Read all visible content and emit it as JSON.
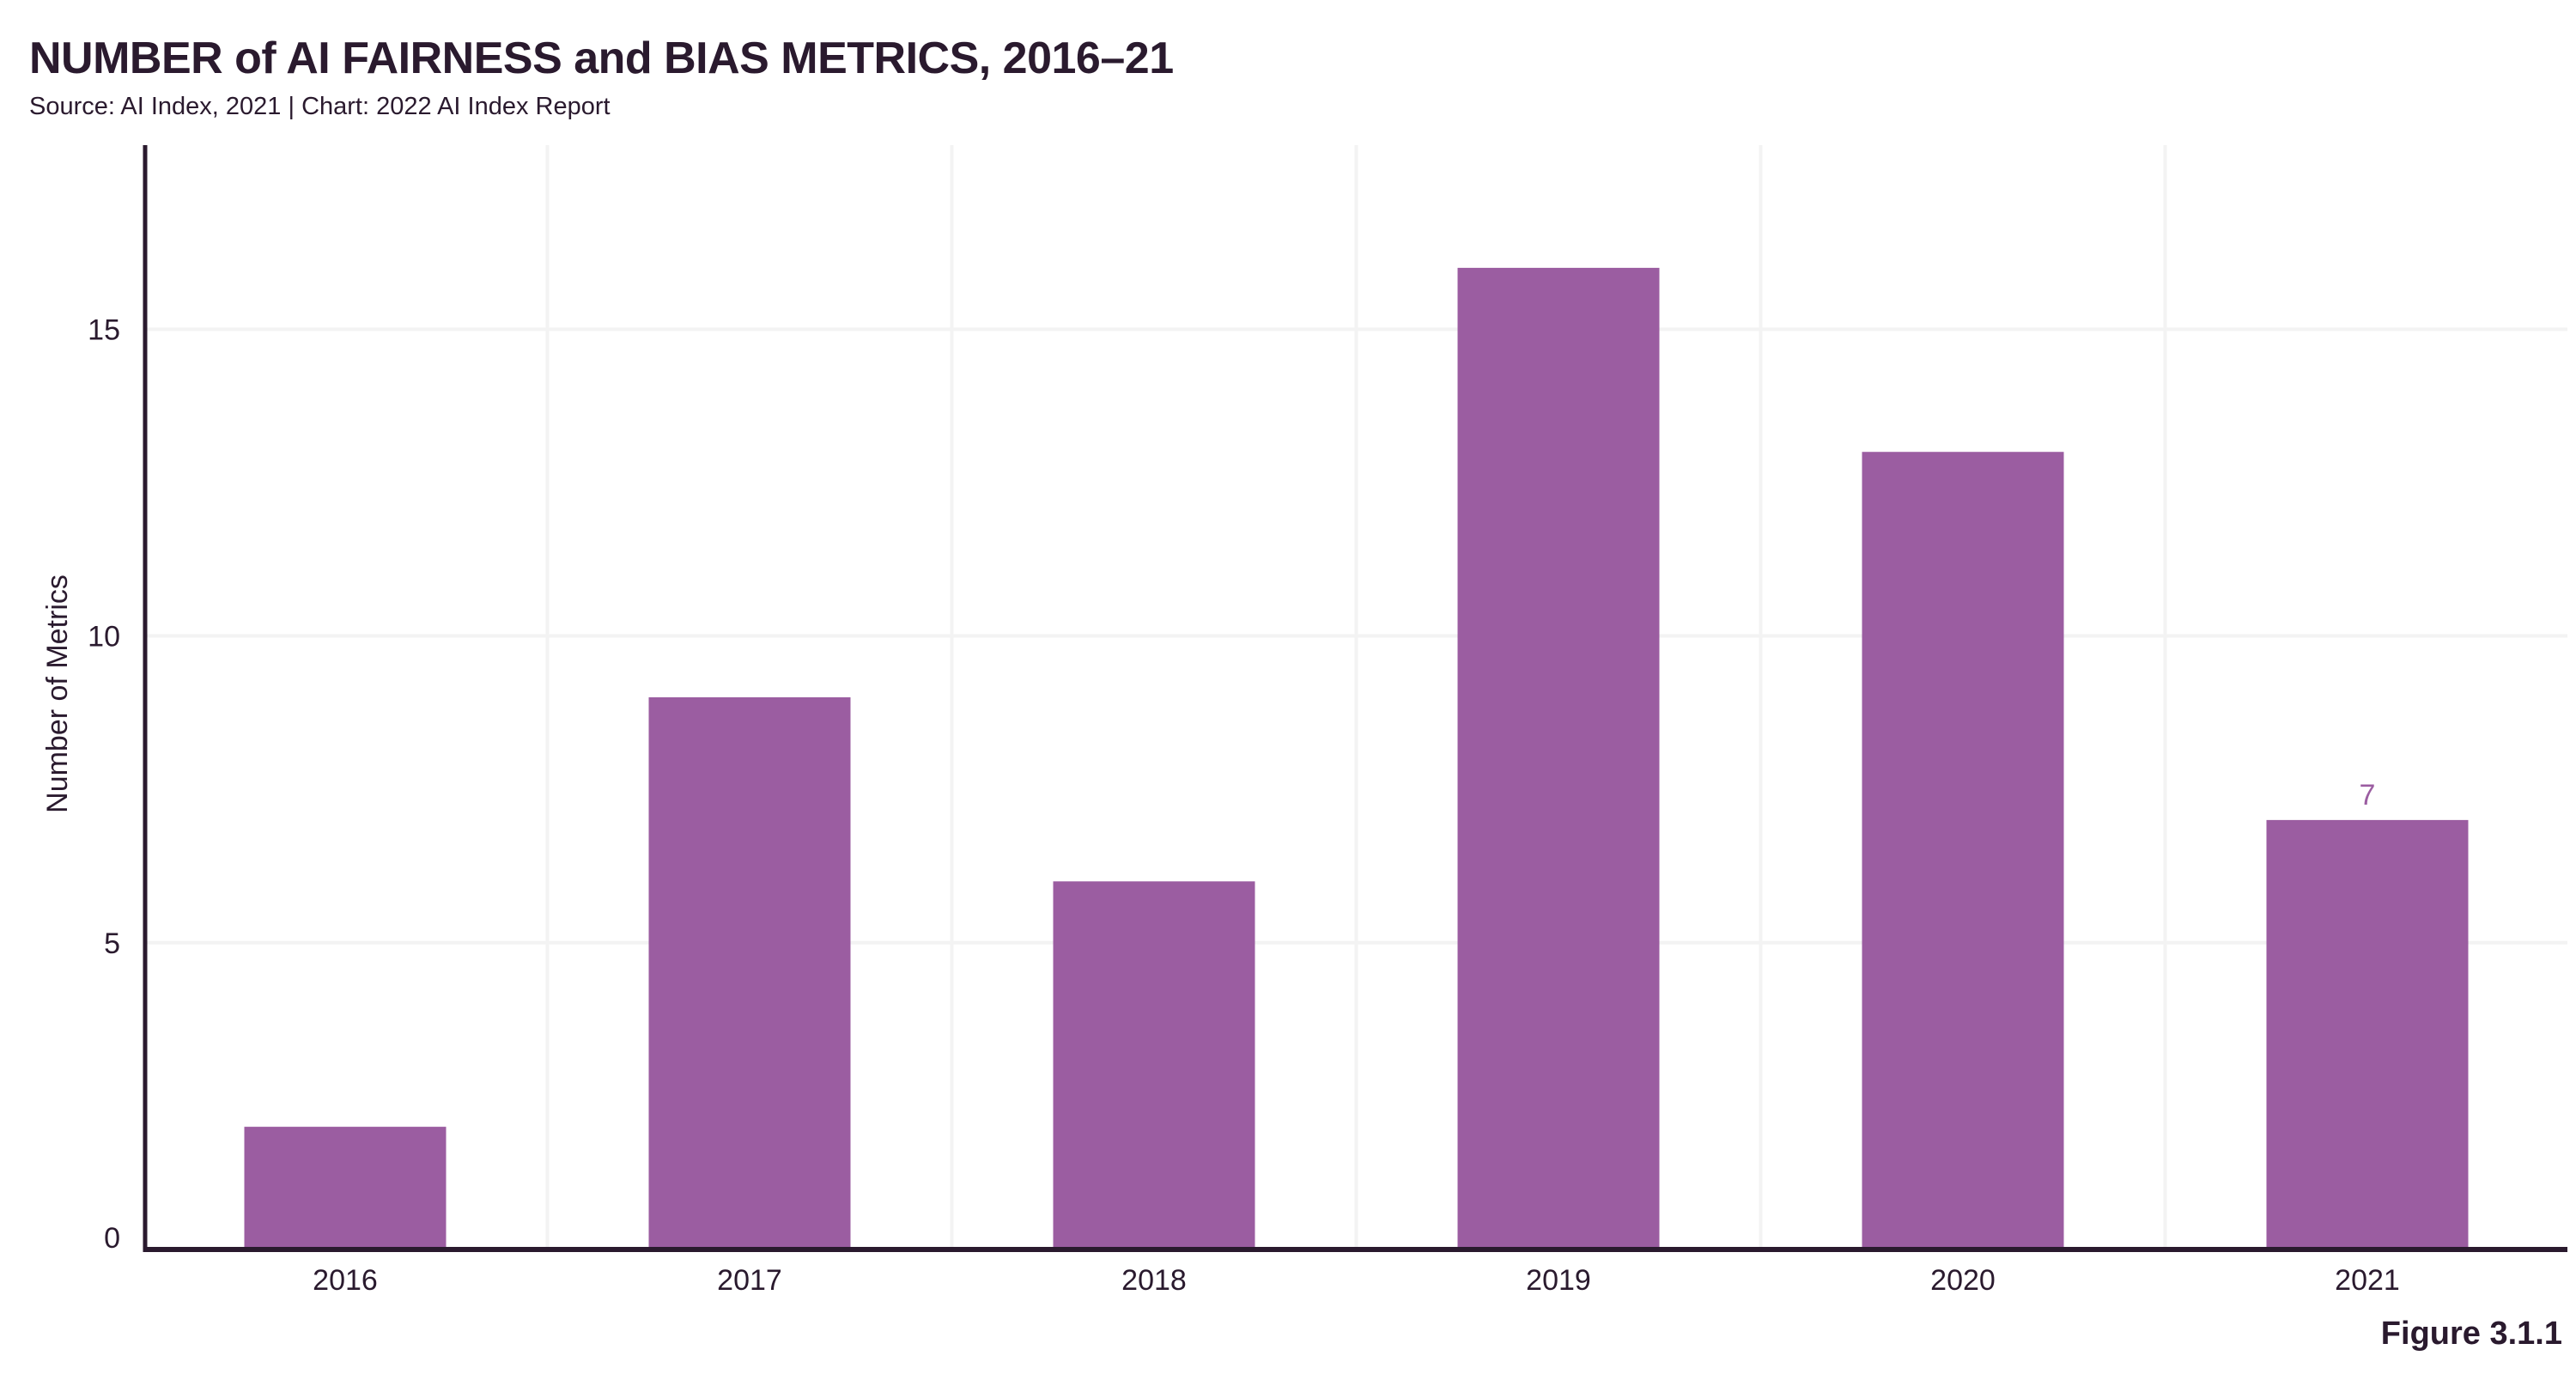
{
  "chart_data": {
    "type": "bar",
    "title": "NUMBER of AI FAIRNESS and BIAS METRICS, 2016–21",
    "subtitle": "Source: AI Index, 2021 | Chart: 2022 AI Index Report",
    "categories": [
      "2016",
      "2017",
      "2018",
      "2019",
      "2020",
      "2021"
    ],
    "values": [
      2,
      9,
      6,
      16,
      13,
      7
    ],
    "data_labels": [
      null,
      null,
      null,
      null,
      null,
      "7"
    ],
    "xlabel": "",
    "ylabel": "Number of Metrics",
    "ylim": [
      0,
      18
    ],
    "yticks": [
      0,
      5,
      10,
      15
    ],
    "grid": true,
    "bar_color": "#9b5da1",
    "text_color": "#2a1a2e",
    "figure_label": "Figure 3.1.1"
  }
}
